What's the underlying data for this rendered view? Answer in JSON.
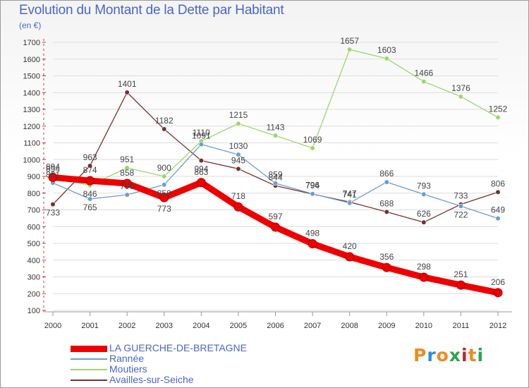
{
  "title": "Evolution du Montant de la Dette par Habitant",
  "subtitle": "(en €)",
  "logo": {
    "text": "Proxiti",
    "letter_colors": [
      "#f08a1c",
      "#2a8fd8",
      "#f08a1c",
      "#27a84a",
      "#c8202a",
      "#f08a1c",
      "#27a84a"
    ]
  },
  "chart_data": {
    "type": "line",
    "title": "Evolution du Montant de la Dette par Habitant",
    "subtitle": "(en €)",
    "xlabel": "",
    "ylabel": "",
    "x": [
      "2000",
      "2001",
      "2002",
      "2003",
      "2004",
      "2005",
      "2006",
      "2007",
      "2008",
      "2009",
      "2010",
      "2011",
      "2012"
    ],
    "ylim": [
      100,
      1700
    ],
    "yticks": [
      100,
      200,
      300,
      400,
      500,
      600,
      700,
      800,
      900,
      1000,
      1100,
      1200,
      1300,
      1400,
      1500,
      1600,
      1700
    ],
    "grid": "horizontal",
    "legend_position": "bottom-left",
    "series": [
      {
        "name": "LA GUERCHE-DE-BRETAGNE",
        "color": "#ee0000",
        "values": [
          894,
          874,
          858,
          773,
          863,
          718,
          597,
          498,
          420,
          356,
          298,
          251,
          206
        ]
      },
      {
        "name": "Rannée",
        "color": "#6a9ed0",
        "values": [
          861,
          765,
          790,
          850,
          1091,
          1030,
          859,
          796,
          741,
          866,
          793,
          722,
          649
        ]
      },
      {
        "name": "Moutiers",
        "color": "#9ad86a",
        "values": [
          894,
          846,
          951,
          900,
          1110,
          1215,
          1143,
          1069,
          1657,
          1603,
          1466,
          1376,
          1252
        ]
      },
      {
        "name": "Availles-sur-Seiche",
        "color": "#7a2e2e",
        "values": [
          733,
          963,
          1401,
          1182,
          994,
          945,
          844,
          794,
          747,
          688,
          626,
          733,
          806
        ]
      }
    ]
  }
}
